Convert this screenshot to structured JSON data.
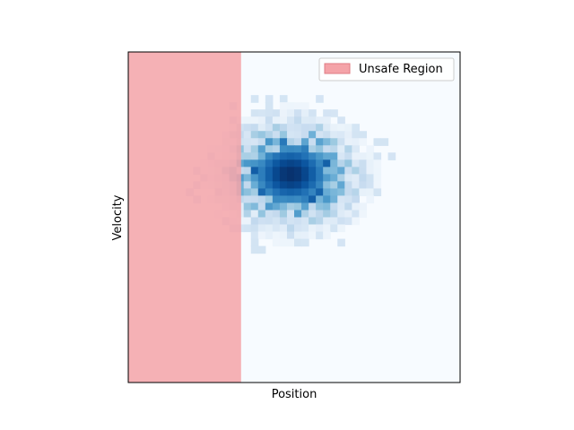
{
  "chart_data": {
    "type": "heatmap",
    "title": "",
    "xlabel": "Position",
    "ylabel": "Velocity",
    "x_ticks_visible": false,
    "y_ticks_visible": false,
    "colormap": "Blues",
    "colormap_stops": [
      "#f7fbff",
      "#deebf7",
      "#c6dbef",
      "#9ecae1",
      "#6baed6",
      "#4292c6",
      "#2171b5",
      "#08519c",
      "#08306b"
    ],
    "density_peak": {
      "x": 0.49,
      "y": 0.63
    },
    "density_spread": {
      "x": 0.095,
      "y": 0.075
    },
    "unsafe_region": {
      "label": "Unsafe Region",
      "x_range": [
        0.0,
        0.34
      ],
      "color": "#f4a3a8",
      "alpha": 0.85
    },
    "legend": {
      "location": "upper right",
      "entries": [
        "Unsafe Region"
      ]
    }
  }
}
